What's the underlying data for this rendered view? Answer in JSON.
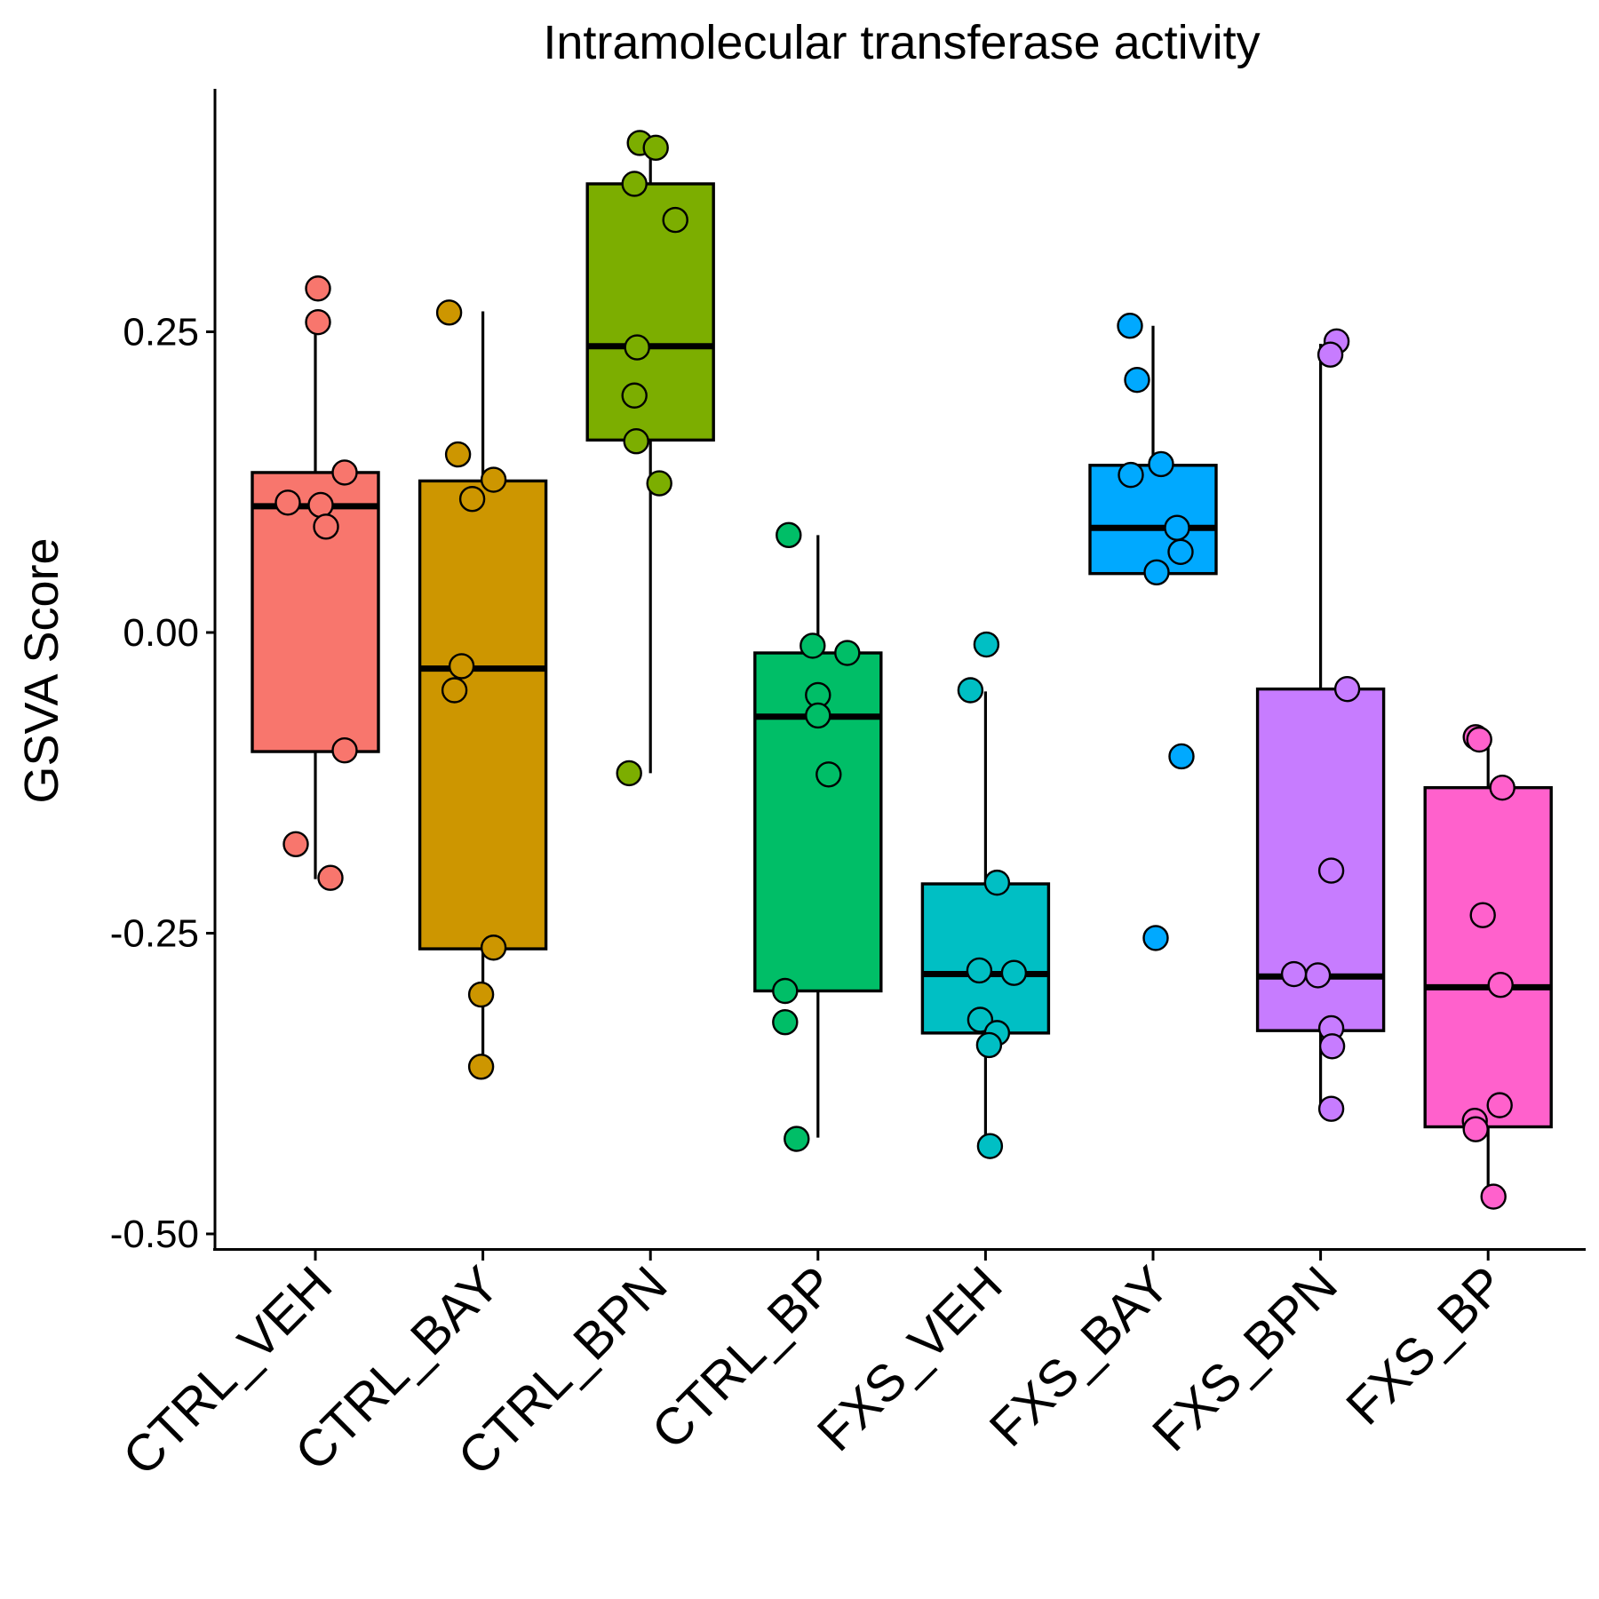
{
  "chart_data": {
    "type": "box",
    "title": "Intramolecular transferase activity",
    "xlabel": "",
    "ylabel": "GSVA Score",
    "ylim": [
      -0.5,
      0.41
    ],
    "yticks": [
      0.25,
      0.0,
      -0.25,
      -0.5
    ],
    "ytick_labels": [
      "0.25",
      "0.00",
      "-0.25",
      "-0.50"
    ],
    "grid": false,
    "legend": "none",
    "categories": [
      "CTRL_VEH",
      "CTRL_BAY",
      "CTRL_BPN",
      "CTRL_BP",
      "FXS_VEH",
      "FXS_BAY",
      "FXS_BPN",
      "FXS_BP"
    ],
    "colors": [
      "#F8766D",
      "#CD9600",
      "#7CAE00",
      "#00BE67",
      "#00BFC4",
      "#00A9FF",
      "#C77CFF",
      "#FF61CC"
    ],
    "boxes": [
      {
        "whisker_low": -0.205,
        "q1": -0.099,
        "median": 0.105,
        "q3": 0.133,
        "whisker_high": 0.26
      },
      {
        "whisker_low": -0.362,
        "q1": -0.263,
        "median": -0.03,
        "q3": 0.126,
        "whisker_high": 0.267
      },
      {
        "whisker_low": -0.117,
        "q1": 0.16,
        "median": 0.238,
        "q3": 0.373,
        "whisker_high": 0.409
      },
      {
        "whisker_low": -0.42,
        "q1": -0.298,
        "median": -0.07,
        "q3": -0.017,
        "whisker_high": 0.081
      },
      {
        "whisker_low": -0.425,
        "q1": -0.333,
        "median": -0.284,
        "q3": -0.209,
        "whisker_high": -0.049
      },
      {
        "whisker_low": 0.049,
        "q1": 0.049,
        "median": 0.087,
        "q3": 0.139,
        "whisker_high": 0.255
      },
      {
        "whisker_low": -0.395,
        "q1": -0.331,
        "median": -0.286,
        "q3": -0.047,
        "whisker_high": 0.24
      },
      {
        "whisker_low": -0.469,
        "q1": -0.411,
        "median": -0.295,
        "q3": -0.129,
        "whisker_high": -0.087
      }
    ],
    "points": [
      [
        0.286,
        0.258,
        0.133,
        0.108,
        0.106,
        0.088,
        -0.098,
        -0.176,
        -0.204
      ],
      [
        0.266,
        0.148,
        0.127,
        0.111,
        -0.028,
        -0.048,
        -0.262,
        -0.301,
        -0.361
      ],
      [
        0.407,
        0.403,
        0.373,
        0.343,
        0.237,
        0.197,
        0.159,
        0.124,
        -0.117
      ],
      [
        0.081,
        -0.011,
        -0.017,
        -0.052,
        -0.069,
        -0.118,
        -0.298,
        -0.324,
        -0.421
      ],
      [
        -0.01,
        -0.048,
        -0.208,
        -0.281,
        -0.283,
        -0.322,
        -0.333,
        -0.343,
        -0.427
      ],
      [
        0.255,
        0.21,
        0.14,
        0.131,
        0.087,
        0.067,
        0.05,
        -0.103,
        -0.254
      ],
      [
        0.242,
        0.231,
        -0.047,
        -0.198,
        -0.284,
        -0.285,
        -0.329,
        -0.344,
        -0.396
      ],
      [
        -0.087,
        -0.089,
        -0.129,
        -0.235,
        -0.293,
        -0.393,
        -0.406,
        -0.413,
        -0.469
      ]
    ]
  }
}
